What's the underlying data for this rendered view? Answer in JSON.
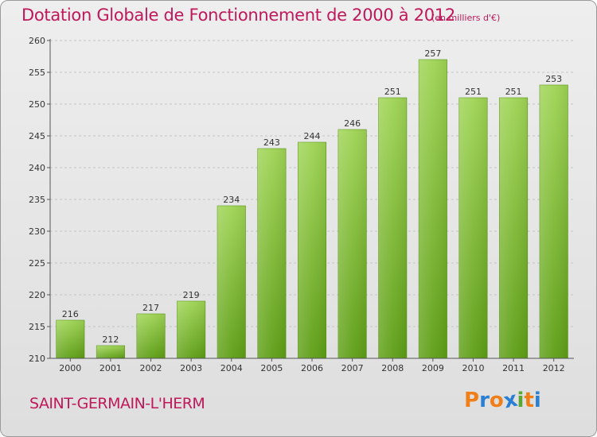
{
  "header": {
    "title": "Dotation Globale de Fonctionnement de 2000 à 2012",
    "unit": "(en milliers d'€)"
  },
  "footer": {
    "commune": "SAINT-GERMAIN-L'HERM",
    "logo": "Proxiti",
    "logo_colors": [
      "#f07f1a",
      "#2a7fd4",
      "#f07f1a",
      "#2a7fd4",
      "#5aa832",
      "#f07f1a",
      "#2a7fd4"
    ]
  },
  "chart_data": {
    "type": "bar",
    "title": "Dotation Globale de Fonctionnement de 2000 à 2012",
    "subtitle": "(en milliers d'€)",
    "categories": [
      "2000",
      "2001",
      "2002",
      "2003",
      "2004",
      "2005",
      "2006",
      "2007",
      "2008",
      "2009",
      "2010",
      "2011",
      "2012"
    ],
    "values": [
      216,
      212,
      217,
      219,
      234,
      243,
      244,
      246,
      251,
      257,
      251,
      251,
      253
    ],
    "ylim": [
      210,
      260
    ],
    "yticks": [
      210,
      215,
      220,
      225,
      230,
      235,
      240,
      245,
      250,
      255,
      260
    ],
    "grid": true,
    "bar_color": "#7cbf2e",
    "axis_color": "#555555"
  }
}
